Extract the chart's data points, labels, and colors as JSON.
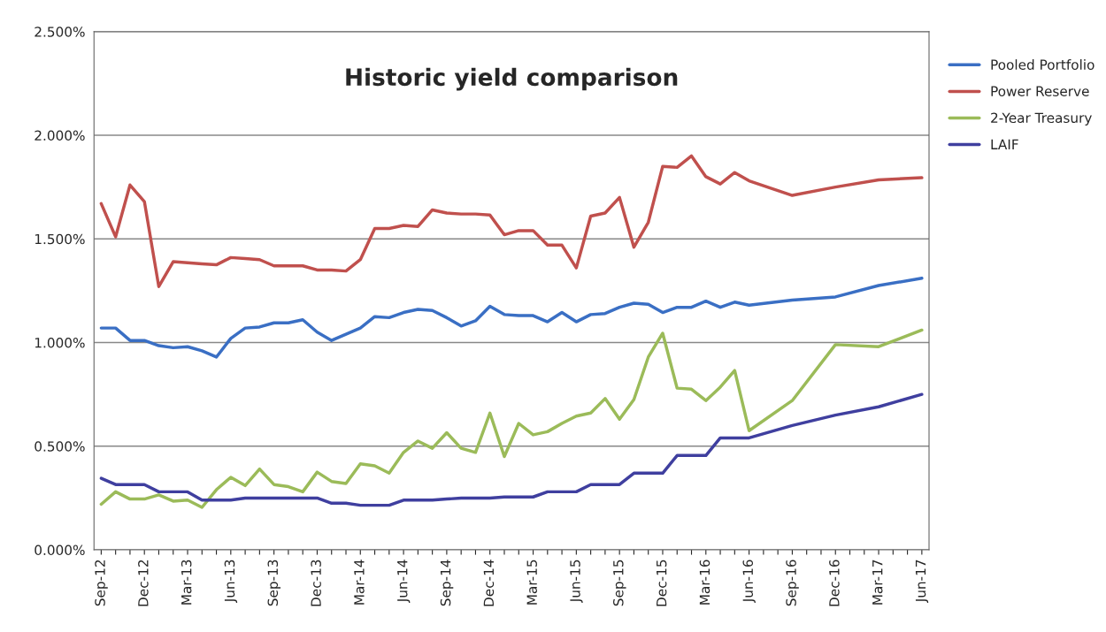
{
  "chart_data": {
    "type": "line",
    "title": "Historic yield comparison",
    "categories": [
      "Sep-12",
      null,
      null,
      "Dec-12",
      null,
      null,
      "Mar-13",
      null,
      null,
      "Jun-13",
      null,
      null,
      "Sep-13",
      null,
      null,
      "Dec-13",
      null,
      null,
      "Mar-14",
      null,
      null,
      "Jun-14",
      null,
      null,
      "Sep-14",
      null,
      null,
      "Dec-14",
      null,
      null,
      "Mar-15",
      null,
      null,
      "Jun-15",
      null,
      null,
      "Sep-15",
      null,
      null,
      "Dec-15",
      null,
      null,
      "Mar-16",
      null,
      null,
      "Jun-16",
      null,
      null,
      "Sep-16",
      null,
      null,
      "Dec-16",
      null,
      null,
      "Mar-17",
      null,
      null,
      "Jun-17"
    ],
    "series": [
      {
        "name": "Pooled Portfolio",
        "color": "#3a6fc4",
        "values": [
          1.07,
          1.07,
          1.01,
          1.01,
          0.985,
          0.975,
          0.98,
          0.96,
          0.93,
          1.02,
          1.07,
          1.075,
          1.095,
          1.095,
          1.11,
          1.05,
          1.01,
          1.04,
          1.07,
          1.125,
          1.12,
          1.145,
          1.16,
          1.155,
          1.12,
          1.08,
          1.105,
          1.175,
          1.135,
          1.13,
          1.13,
          1.1,
          1.145,
          1.1,
          1.135,
          1.14,
          1.17,
          1.19,
          1.185,
          1.145,
          1.17,
          1.17,
          1.2,
          1.17,
          1.195,
          1.18,
          null,
          null,
          1.205,
          null,
          null,
          1.22,
          null,
          null,
          1.275,
          null,
          null,
          1.31
        ]
      },
      {
        "name": "Power Reserve",
        "color": "#c0504d",
        "values": [
          1.67,
          1.51,
          1.76,
          1.68,
          1.27,
          1.39,
          1.385,
          1.38,
          1.375,
          1.41,
          1.405,
          1.4,
          1.37,
          1.37,
          1.37,
          1.35,
          1.35,
          1.345,
          1.4,
          1.55,
          1.55,
          1.565,
          1.56,
          1.64,
          1.625,
          1.62,
          1.62,
          1.615,
          1.52,
          1.54,
          1.54,
          1.47,
          1.47,
          1.36,
          1.61,
          1.625,
          1.7,
          1.46,
          1.58,
          1.85,
          1.845,
          1.9,
          1.8,
          1.765,
          1.82,
          1.78,
          null,
          null,
          1.71,
          null,
          null,
          1.75,
          null,
          null,
          1.785,
          null,
          null,
          1.795
        ]
      },
      {
        "name": "2-Year Treasury",
        "color": "#9bbb59",
        "values": [
          0.22,
          0.28,
          0.245,
          0.245,
          0.265,
          0.235,
          0.24,
          0.205,
          0.29,
          0.35,
          0.31,
          0.39,
          0.315,
          0.305,
          0.28,
          0.375,
          0.33,
          0.32,
          0.415,
          0.405,
          0.37,
          0.47,
          0.525,
          0.49,
          0.565,
          0.49,
          0.47,
          0.66,
          0.45,
          0.61,
          0.555,
          0.57,
          0.61,
          0.645,
          0.66,
          0.73,
          0.63,
          0.725,
          0.93,
          1.045,
          0.78,
          0.775,
          0.72,
          0.785,
          0.865,
          0.575,
          null,
          null,
          0.72,
          null,
          null,
          0.99,
          null,
          null,
          0.98,
          null,
          null,
          1.06
        ]
      },
      {
        "name": "LAIF",
        "color": "#3f3f9f",
        "values": [
          0.345,
          0.315,
          0.315,
          0.315,
          0.28,
          0.28,
          0.28,
          0.24,
          0.24,
          0.24,
          0.25,
          0.25,
          0.25,
          0.25,
          0.25,
          0.25,
          0.225,
          0.225,
          0.215,
          0.215,
          0.215,
          0.24,
          0.24,
          0.24,
          0.245,
          0.25,
          0.25,
          0.25,
          0.255,
          0.255,
          0.255,
          0.28,
          0.28,
          0.28,
          0.315,
          0.315,
          0.315,
          0.37,
          0.37,
          0.37,
          0.455,
          0.455,
          0.455,
          0.54,
          0.54,
          0.54,
          null,
          null,
          0.6,
          null,
          null,
          0.65,
          null,
          null,
          0.69,
          null,
          null,
          0.75
        ]
      }
    ],
    "ylim": [
      0,
      2.5
    ],
    "yticks": [
      {
        "value": 0,
        "label": "0.000%"
      },
      {
        "value": 0.5,
        "label": "0.500%"
      },
      {
        "value": 1,
        "label": "1.000%"
      },
      {
        "value": 1.5,
        "label": "1.500%"
      },
      {
        "value": 2,
        "label": "2.000%"
      },
      {
        "value": 2.5,
        "label": "2.500%"
      }
    ],
    "grid": "y",
    "legend": "right",
    "marker": "none",
    "line_style": "solid"
  }
}
